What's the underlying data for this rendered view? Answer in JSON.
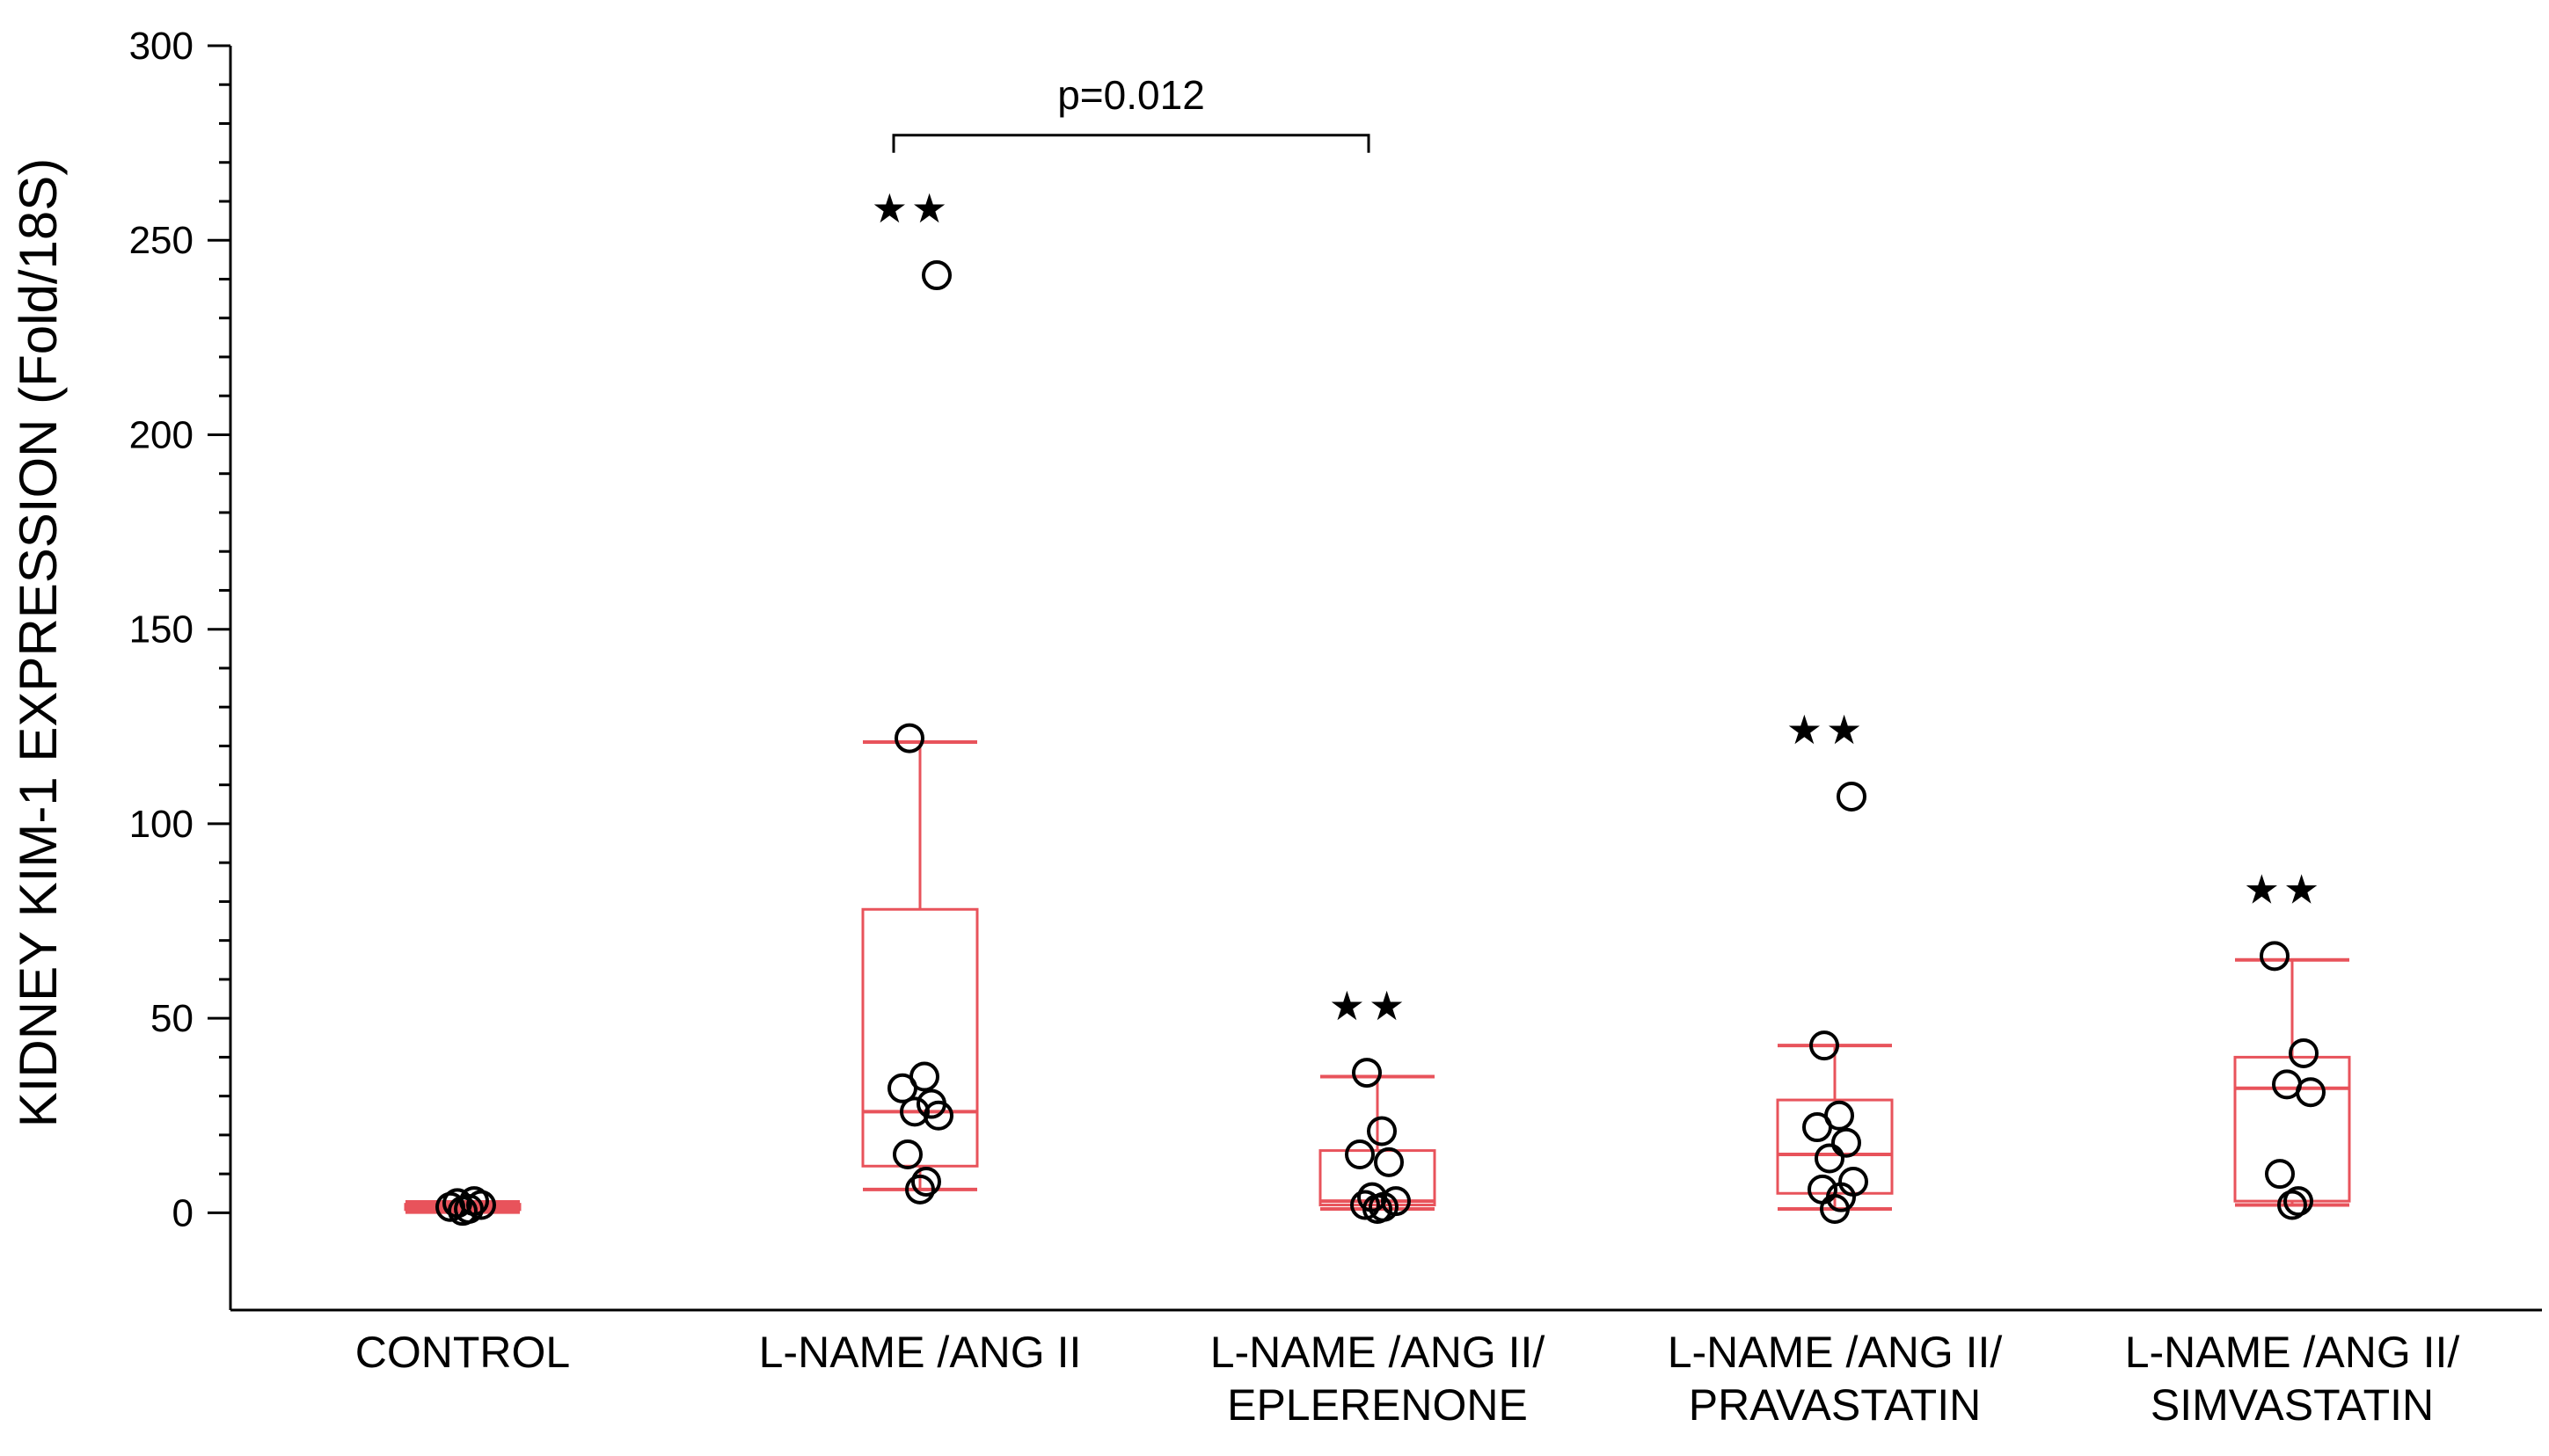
{
  "chart_data": {
    "type": "box",
    "ylabel": "KIDNEY KIM-1 EXPRESSION (Fold/18S)",
    "xlabel": "",
    "ylim": [
      -25,
      300
    ],
    "yticks": [
      0,
      50,
      100,
      150,
      200,
      250,
      300
    ],
    "grid": false,
    "colors": {
      "box": "#e8535b",
      "median": "#e8535b",
      "points": "#000000"
    },
    "groups": [
      {
        "label": [
          "CONTROL"
        ],
        "whisker_low": 0.5,
        "q1": 0.8,
        "median": 1.3,
        "q3": 2.2,
        "whisker_high": 2.8,
        "points": [
          0.5,
          1.0,
          1.5,
          2.0,
          2.5,
          3.0
        ],
        "significance": ""
      },
      {
        "label": [
          "L-NAME /ANG II"
        ],
        "whisker_low": 6,
        "q1": 12,
        "median": 26,
        "q3": 78,
        "whisker_high": 121,
        "points": [
          6,
          8,
          15,
          25,
          26,
          28,
          32,
          35,
          122,
          241
        ],
        "significance": "★★"
      },
      {
        "label": [
          "L-NAME /ANG II/",
          "EPLERENONE"
        ],
        "whisker_low": 1,
        "q1": 2,
        "median": 3,
        "q3": 16,
        "whisker_high": 35,
        "points": [
          1,
          1.5,
          2,
          3,
          4,
          13,
          15,
          21,
          36
        ],
        "significance": "★★"
      },
      {
        "label": [
          "L-NAME /ANG II/",
          "PRAVASTATIN"
        ],
        "whisker_low": 1,
        "q1": 5,
        "median": 15,
        "q3": 29,
        "whisker_high": 43,
        "points": [
          1,
          4,
          6,
          8,
          14,
          18,
          22,
          25,
          43,
          107
        ],
        "significance": "★★"
      },
      {
        "label": [
          "L-NAME /ANG II/",
          "SIMVASTATIN"
        ],
        "whisker_low": 2,
        "q1": 3,
        "median": 32,
        "q3": 40,
        "whisker_high": 65,
        "points": [
          2,
          3,
          10,
          31,
          33,
          41,
          66
        ],
        "significance": "★★"
      }
    ],
    "bracket": {
      "from_group": 1,
      "to_group": 2,
      "y": 277,
      "label": "p=0.012"
    }
  }
}
